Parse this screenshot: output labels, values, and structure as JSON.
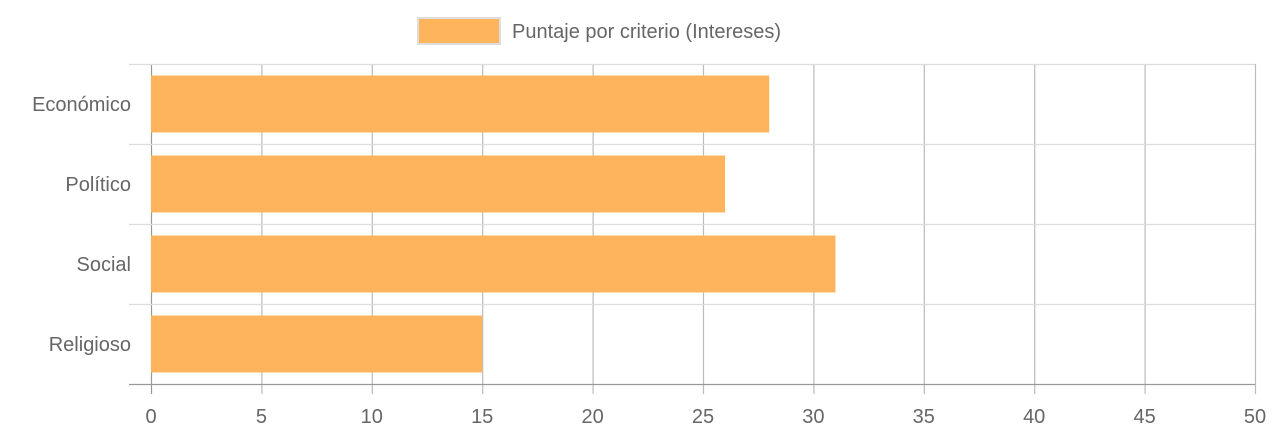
{
  "chart_data": {
    "type": "bar",
    "orientation": "horizontal",
    "categories": [
      "Económico",
      "Político",
      "Social",
      "Religioso"
    ],
    "series": [
      {
        "name": "Puntaje por criterio (Intereses)",
        "values": [
          28,
          26,
          31,
          15
        ]
      }
    ],
    "xlim": [
      0,
      50
    ],
    "x_ticks": [
      "0",
      "5",
      "10",
      "15",
      "20",
      "25",
      "30",
      "35",
      "40",
      "45",
      "50"
    ],
    "grid": true,
    "legend_position": "top",
    "colors": {
      "bar_fill": "#fdb45c",
      "legend_border": "#dddddd",
      "grid": "#bbbbbb",
      "text": "#666666"
    }
  }
}
